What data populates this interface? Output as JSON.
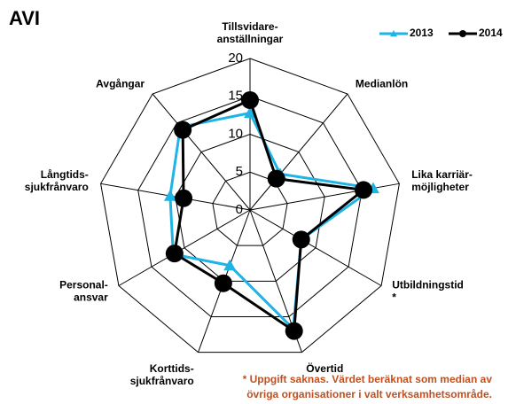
{
  "chart_data": {
    "type": "radar",
    "title": "AVI",
    "categories": [
      [
        "Tillsvidare-",
        "anställningar"
      ],
      [
        "Medianlön"
      ],
      [
        "Lika karriär-",
        "möjligheter"
      ],
      [
        "Utbildningstid",
        "*"
      ],
      [
        "Övertid"
      ],
      [
        "Korttids-",
        "sjukfrånvaro"
      ],
      [
        "Personal-",
        "ansvar"
      ],
      [
        "Långtids-",
        "sjukfrånvaro"
      ],
      [
        "Avgångar"
      ]
    ],
    "series": [
      {
        "name": "2013",
        "color": "#1fb4e6",
        "marker": "triangle",
        "values": [
          12.8,
          6.2,
          16.5,
          7.8,
          16.7,
          7.8,
          11.7,
          10.7,
          14.3
        ]
      },
      {
        "name": "2014",
        "color": "#000000",
        "marker": "circle",
        "values": [
          14.5,
          5.4,
          15.2,
          7.8,
          17,
          10.3,
          11.5,
          8.9,
          13.8
        ]
      }
    ],
    "ylim": [
      0,
      20
    ],
    "yticks": [
      0,
      5,
      10,
      15,
      20
    ],
    "grid": true,
    "footnote": [
      "* Uppgift saknas. Värdet beräknat som median av",
      "övriga organisationer i valt verksamhetsområde."
    ]
  }
}
